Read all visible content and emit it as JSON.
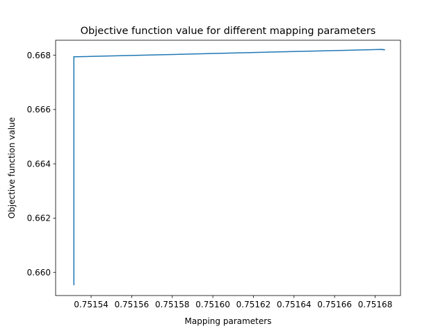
{
  "chart_data": {
    "type": "line",
    "title": "Objective function value for different mapping parameters",
    "xlabel": "Mapping parameters",
    "ylabel": "Objective function value",
    "xlim": [
      0.7515225,
      0.7516925
    ],
    "ylim": [
      0.65915,
      0.66855
    ],
    "xticks": [
      0.75154,
      0.75156,
      0.75158,
      0.7516,
      0.75162,
      0.75164,
      0.75166,
      0.75168
    ],
    "xtick_labels": [
      "0.75154",
      "0.75156",
      "0.75158",
      "0.75160",
      "0.75162",
      "0.75164",
      "0.75166",
      "0.75168"
    ],
    "yticks": [
      0.66,
      0.662,
      0.664,
      0.666,
      0.668
    ],
    "ytick_labels": [
      "0.660",
      "0.662",
      "0.664",
      "0.666",
      "0.668"
    ],
    "grid": false,
    "series": [
      {
        "color": "#1f77b4",
        "x": [
          0.7515315,
          0.7515315,
          0.7515315,
          0.7516827,
          0.7516847,
          0.7516825
        ],
        "y": [
          0.65955,
          0.66795,
          0.66794,
          0.66821,
          0.6682,
          0.66821
        ]
      }
    ]
  }
}
